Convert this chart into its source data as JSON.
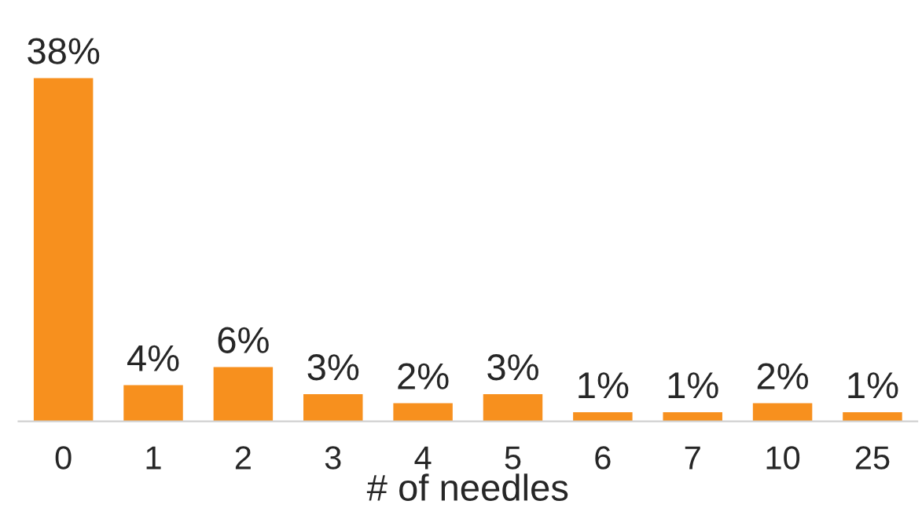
{
  "chart_data": {
    "type": "bar",
    "xlabel": "# of needles",
    "categories": [
      "0",
      "1",
      "2",
      "3",
      "4",
      "5",
      "6",
      "7",
      "10",
      "25"
    ],
    "values": [
      38,
      4,
      6,
      3,
      2,
      3,
      1,
      1,
      2,
      1
    ],
    "value_labels": [
      "38%",
      "4%",
      "6%",
      "3%",
      "2%",
      "3%",
      "1%",
      "1%",
      "2%",
      "1%"
    ],
    "color": "#f7901e",
    "grid": false,
    "legend": false
  }
}
